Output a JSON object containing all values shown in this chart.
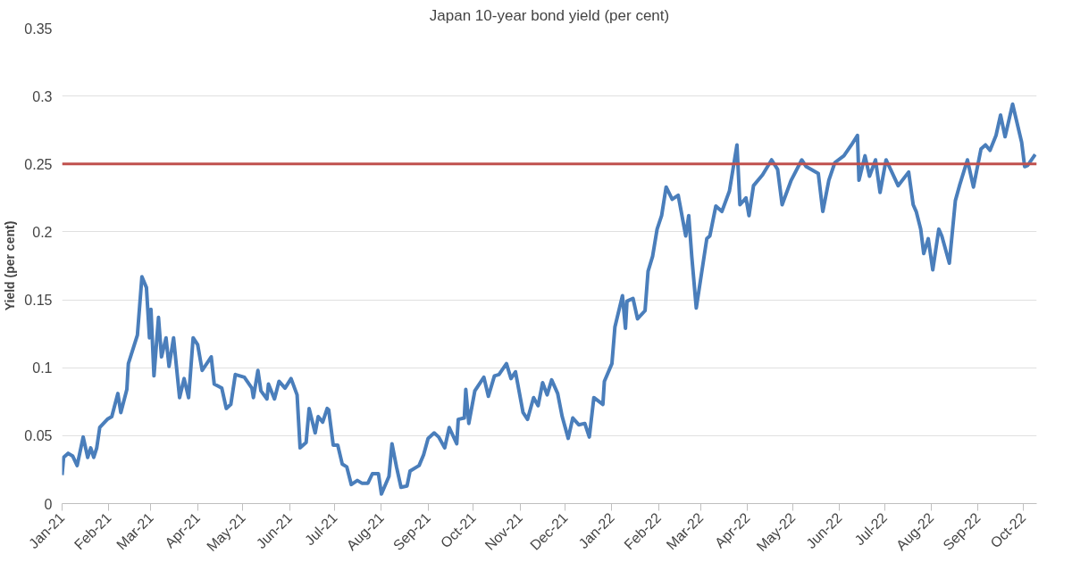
{
  "chart_data": {
    "type": "line",
    "title": "Japan 10-year bond yield (per cent)",
    "ylabel": "Yield (per cent)",
    "x": [
      "2021-01-01",
      "2021-01-02",
      "2021-01-05",
      "2021-01-08",
      "2021-01-11",
      "2021-01-15",
      "2021-01-18",
      "2021-01-20",
      "2021-01-22",
      "2021-01-24",
      "2021-01-26",
      "2021-01-31",
      "2021-02-03",
      "2021-02-07",
      "2021-02-09",
      "2021-02-13",
      "2021-02-14",
      "2021-02-20",
      "2021-02-23",
      "2021-02-26",
      "2021-02-28",
      "2021-03-01",
      "2021-03-03",
      "2021-03-06",
      "2021-03-08",
      "2021-03-11",
      "2021-03-13",
      "2021-03-16",
      "2021-03-20",
      "2021-03-23",
      "2021-03-26",
      "2021-03-29",
      "2021-04-01",
      "2021-04-04",
      "2021-04-10",
      "2021-04-12",
      "2021-04-17",
      "2021-04-20",
      "2021-04-23",
      "2021-04-26",
      "2021-05-02",
      "2021-05-07",
      "2021-05-08",
      "2021-05-11",
      "2021-05-13",
      "2021-05-17",
      "2021-05-18",
      "2021-05-22",
      "2021-05-25",
      "2021-05-29",
      "2021-06-02",
      "2021-06-06",
      "2021-06-08",
      "2021-06-12",
      "2021-06-14",
      "2021-06-18",
      "2021-06-20",
      "2021-06-23",
      "2021-06-26",
      "2021-06-27",
      "2021-06-30",
      "2021-07-03",
      "2021-07-06",
      "2021-07-09",
      "2021-07-12",
      "2021-07-16",
      "2021-07-19",
      "2021-07-23",
      "2021-07-26",
      "2021-07-30",
      "2021-08-01",
      "2021-08-06",
      "2021-08-08",
      "2021-08-11",
      "2021-08-14",
      "2021-08-18",
      "2021-08-20",
      "2021-08-26",
      "2021-08-29",
      "2021-09-01",
      "2021-09-05",
      "2021-09-08",
      "2021-09-12",
      "2021-09-15",
      "2021-09-20",
      "2021-09-21",
      "2021-09-25",
      "2021-09-26",
      "2021-09-28",
      "2021-10-02",
      "2021-10-08",
      "2021-10-11",
      "2021-10-15",
      "2021-10-18",
      "2021-10-23",
      "2021-10-26",
      "2021-10-29",
      "2021-11-03",
      "2021-11-06",
      "2021-11-10",
      "2021-11-13",
      "2021-11-16",
      "2021-11-19",
      "2021-11-22",
      "2021-11-26",
      "2021-11-29",
      "2021-12-03",
      "2021-12-06",
      "2021-12-10",
      "2021-12-14",
      "2021-12-17",
      "2021-12-20",
      "2021-12-26",
      "2021-12-27",
      "2022-01-01",
      "2022-01-03",
      "2022-01-08",
      "2022-01-10",
      "2022-01-11",
      "2022-01-15",
      "2022-01-18",
      "2022-01-23",
      "2022-01-25",
      "2022-01-28",
      "2022-01-31",
      "2022-02-03",
      "2022-02-06",
      "2022-02-10",
      "2022-02-14",
      "2022-02-19",
      "2022-02-21",
      "2022-02-23",
      "2022-02-26",
      "2022-03-05",
      "2022-03-07",
      "2022-03-11",
      "2022-03-15",
      "2022-03-20",
      "2022-03-25",
      "2022-03-27",
      "2022-03-31",
      "2022-04-02",
      "2022-04-05",
      "2022-04-11",
      "2022-04-17",
      "2022-04-21",
      "2022-04-24",
      "2022-04-30",
      "2022-05-07",
      "2022-05-10",
      "2022-05-18",
      "2022-05-21",
      "2022-05-25",
      "2022-05-29",
      "2022-06-04",
      "2022-06-09",
      "2022-06-13",
      "2022-06-14",
      "2022-06-18",
      "2022-06-21",
      "2022-06-25",
      "2022-06-28",
      "2022-07-02",
      "2022-07-05",
      "2022-07-10",
      "2022-07-17",
      "2022-07-20",
      "2022-07-22",
      "2022-07-25",
      "2022-07-27",
      "2022-07-30",
      "2022-08-02",
      "2022-08-06",
      "2022-08-08",
      "2022-08-13",
      "2022-08-17",
      "2022-08-20",
      "2022-08-25",
      "2022-08-29",
      "2022-09-03",
      "2022-09-06",
      "2022-09-09",
      "2022-09-13",
      "2022-09-16",
      "2022-09-19",
      "2022-09-24",
      "2022-09-30",
      "2022-10-02",
      "2022-10-04",
      "2022-10-09"
    ],
    "series": [
      {
        "color": "#4a7ebb",
        "values": [
          0.021,
          0.034,
          0.037,
          0.035,
          0.028,
          0.049,
          0.034,
          0.041,
          0.034,
          0.041,
          0.056,
          0.062,
          0.064,
          0.081,
          0.067,
          0.084,
          0.103,
          0.124,
          0.167,
          0.159,
          0.122,
          0.143,
          0.094,
          0.137,
          0.108,
          0.122,
          0.101,
          0.122,
          0.078,
          0.092,
          0.078,
          0.122,
          0.117,
          0.098,
          0.108,
          0.088,
          0.085,
          0.07,
          0.073,
          0.095,
          0.093,
          0.085,
          0.078,
          0.098,
          0.083,
          0.077,
          0.088,
          0.077,
          0.09,
          0.085,
          0.092,
          0.08,
          0.041,
          0.045,
          0.07,
          0.052,
          0.064,
          0.06,
          0.07,
          0.069,
          0.043,
          0.043,
          0.029,
          0.027,
          0.014,
          0.017,
          0.015,
          0.015,
          0.022,
          0.022,
          0.007,
          0.02,
          0.044,
          0.027,
          0.012,
          0.013,
          0.024,
          0.028,
          0.036,
          0.048,
          0.052,
          0.049,
          0.041,
          0.056,
          0.044,
          0.062,
          0.063,
          0.084,
          0.059,
          0.083,
          0.093,
          0.079,
          0.094,
          0.095,
          0.103,
          0.092,
          0.097,
          0.067,
          0.062,
          0.078,
          0.072,
          0.089,
          0.08,
          0.091,
          0.081,
          0.064,
          0.048,
          0.063,
          0.058,
          0.059,
          0.049,
          0.078,
          0.073,
          0.09,
          0.103,
          0.13,
          0.153,
          0.129,
          0.149,
          0.151,
          0.136,
          0.142,
          0.171,
          0.182,
          0.202,
          0.212,
          0.233,
          0.224,
          0.227,
          0.197,
          0.212,
          0.182,
          0.144,
          0.195,
          0.197,
          0.219,
          0.215,
          0.23,
          0.264,
          0.22,
          0.225,
          0.212,
          0.234,
          0.242,
          0.253,
          0.246,
          0.22,
          0.238,
          0.253,
          0.248,
          0.243,
          0.215,
          0.238,
          0.251,
          0.256,
          0.264,
          0.271,
          0.238,
          0.256,
          0.241,
          0.253,
          0.229,
          0.253,
          0.246,
          0.234,
          0.244,
          0.22,
          0.215,
          0.202,
          0.184,
          0.195,
          0.172,
          0.202,
          0.197,
          0.177,
          0.223,
          0.235,
          0.253,
          0.233,
          0.261,
          0.264,
          0.26,
          0.271,
          0.286,
          0.27,
          0.294,
          0.266,
          0.248,
          0.249,
          0.257
        ]
      }
    ],
    "xlim": [
      "2021-01-01",
      "2022-10-10"
    ],
    "xticks": [
      {
        "value": "2021-01",
        "label": "Jan-21"
      },
      {
        "value": "2021-02",
        "label": "Feb-21"
      },
      {
        "value": "2021-03",
        "label": "Mar-21"
      },
      {
        "value": "2021-04",
        "label": "Apr-21"
      },
      {
        "value": "2021-05",
        "label": "May-21"
      },
      {
        "value": "2021-06",
        "label": "Jun-21"
      },
      {
        "value": "2021-07",
        "label": "Jul-21"
      },
      {
        "value": "2021-08",
        "label": "Aug-21"
      },
      {
        "value": "2021-09",
        "label": "Sep-21"
      },
      {
        "value": "2021-10",
        "label": "Oct-21"
      },
      {
        "value": "2021-11",
        "label": "Nov-21"
      },
      {
        "value": "2021-12",
        "label": "Dec-21"
      },
      {
        "value": "2022-01",
        "label": "Jan-22"
      },
      {
        "value": "2022-02",
        "label": "Feb-22"
      },
      {
        "value": "2022-03",
        "label": "Mar-22"
      },
      {
        "value": "2022-04",
        "label": "Apr-22"
      },
      {
        "value": "2022-05",
        "label": "May-22"
      },
      {
        "value": "2022-06",
        "label": "Jun-22"
      },
      {
        "value": "2022-07",
        "label": "Jul-22"
      },
      {
        "value": "2022-08",
        "label": "Aug-22"
      },
      {
        "value": "2022-09",
        "label": "Sep-22"
      },
      {
        "value": "2022-10",
        "label": "Oct-22"
      }
    ],
    "ylim": [
      0,
      0.35
    ],
    "yticks": [
      0,
      0.05,
      0.1,
      0.15,
      0.2,
      0.25,
      0.3,
      0.35
    ],
    "ref_lines": [
      {
        "axis": "y",
        "value": 0.25,
        "color": "#c0504d"
      }
    ],
    "grid": "y",
    "marker": "none",
    "line_style": "solid"
  }
}
